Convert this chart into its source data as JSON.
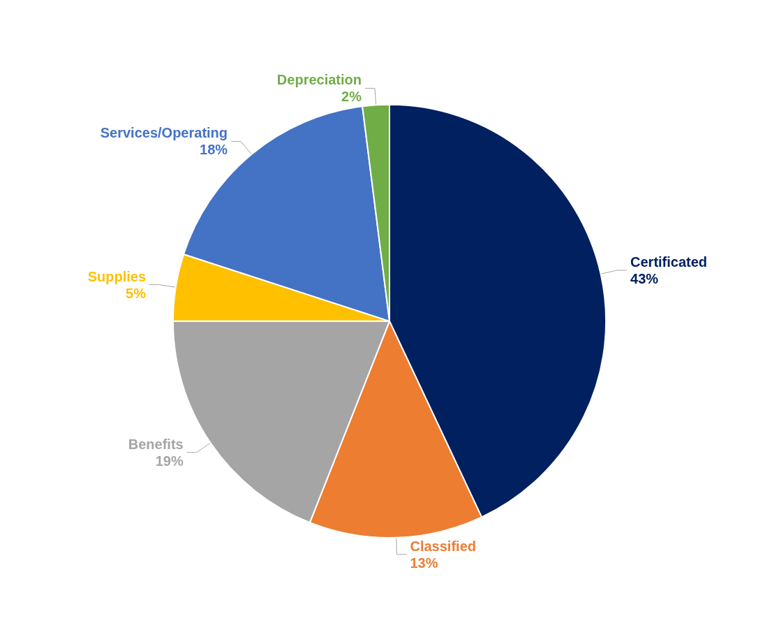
{
  "chart_data": {
    "type": "pie",
    "categories": [
      "Certificated",
      "Classified",
      "Benefits",
      "Supplies",
      "Services/Operating",
      "Depreciation"
    ],
    "values": [
      43,
      13,
      19,
      5,
      18,
      2
    ],
    "value_labels": [
      "43%",
      "13%",
      "19%",
      "5%",
      "18%",
      "2%"
    ],
    "colors": [
      "#002060",
      "#ed7d31",
      "#a5a5a5",
      "#ffc000",
      "#4472c4",
      "#70ad47"
    ],
    "legend": false
  }
}
